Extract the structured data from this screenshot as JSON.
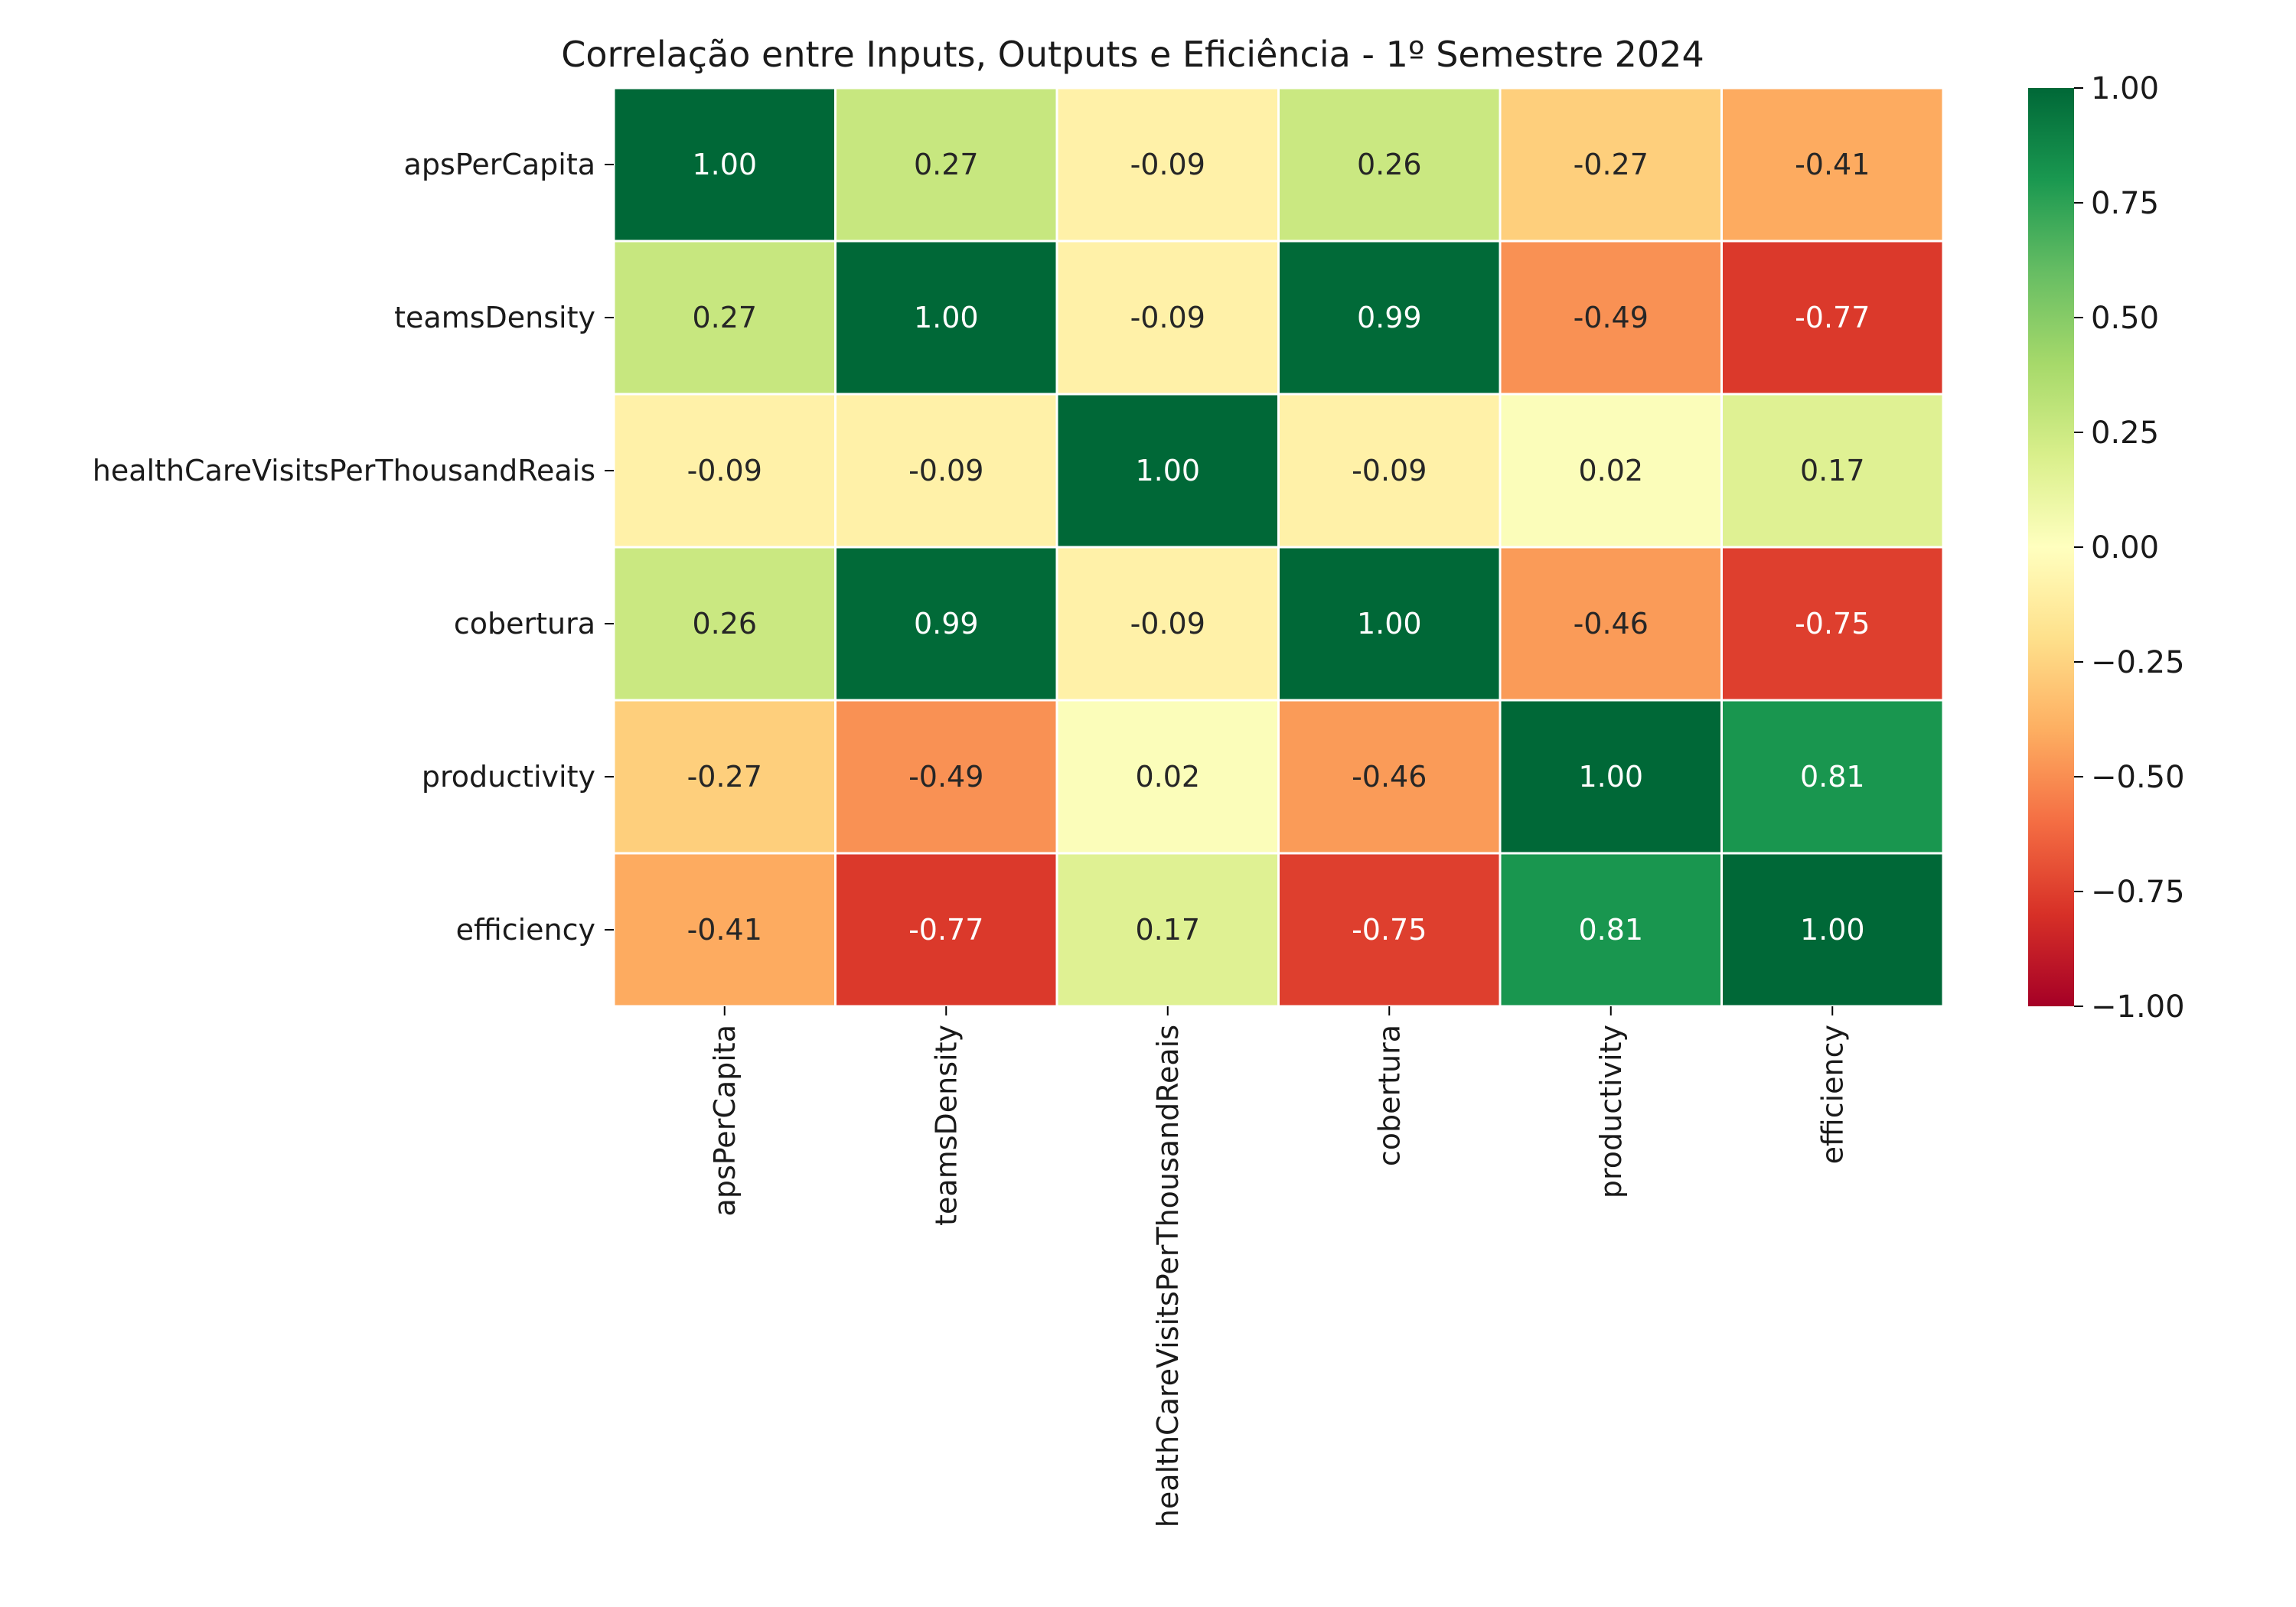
{
  "chart_data": {
    "type": "heatmap",
    "title": "Correlação entre Inputs, Outputs e Eficiência - 1º Semestre 2024",
    "xlabel": "",
    "ylabel": "",
    "rows": [
      "apsPerCapita",
      "teamsDensity",
      "healthCareVisitsPerThousandReais",
      "cobertura",
      "productivity",
      "efficiency"
    ],
    "columns": [
      "apsPerCapita",
      "teamsDensity",
      "healthCareVisitsPerThousandReais",
      "cobertura",
      "productivity",
      "efficiency"
    ],
    "values": [
      [
        1.0,
        0.27,
        -0.09,
        0.26,
        -0.27,
        -0.41
      ],
      [
        0.27,
        1.0,
        -0.09,
        0.99,
        -0.49,
        -0.77
      ],
      [
        -0.09,
        -0.09,
        1.0,
        -0.09,
        0.02,
        0.17
      ],
      [
        0.26,
        0.99,
        -0.09,
        1.0,
        -0.46,
        -0.75
      ],
      [
        -0.27,
        -0.49,
        0.02,
        -0.46,
        1.0,
        0.81
      ],
      [
        -0.41,
        -0.77,
        0.17,
        -0.75,
        0.81,
        1.0
      ]
    ],
    "value_labels": [
      [
        "1.00",
        "0.27",
        "-0.09",
        "0.26",
        "-0.27",
        "-0.41"
      ],
      [
        "0.27",
        "1.00",
        "-0.09",
        "0.99",
        "-0.49",
        "-0.77"
      ],
      [
        "-0.09",
        "-0.09",
        "1.00",
        "-0.09",
        "0.02",
        "0.17"
      ],
      [
        "0.26",
        "0.99",
        "-0.09",
        "1.00",
        "-0.46",
        "-0.75"
      ],
      [
        "-0.27",
        "-0.49",
        "0.02",
        "-0.46",
        "1.00",
        "0.81"
      ],
      [
        "-0.41",
        "-0.77",
        "0.17",
        "-0.75",
        "0.81",
        "1.00"
      ]
    ],
    "colormap": "RdYlGn",
    "vmin": -1.0,
    "vmax": 1.0,
    "colorbar_ticks": [
      1.0,
      0.75,
      0.5,
      0.25,
      0.0,
      -0.25,
      -0.5,
      -0.75,
      -1.0
    ],
    "colorbar_tick_labels": [
      "1.00",
      "0.75",
      "0.50",
      "0.25",
      "0.00",
      "−0.25",
      "−0.50",
      "−0.75",
      "−1.00"
    ],
    "grid": false,
    "legend": "colorbar-right"
  }
}
